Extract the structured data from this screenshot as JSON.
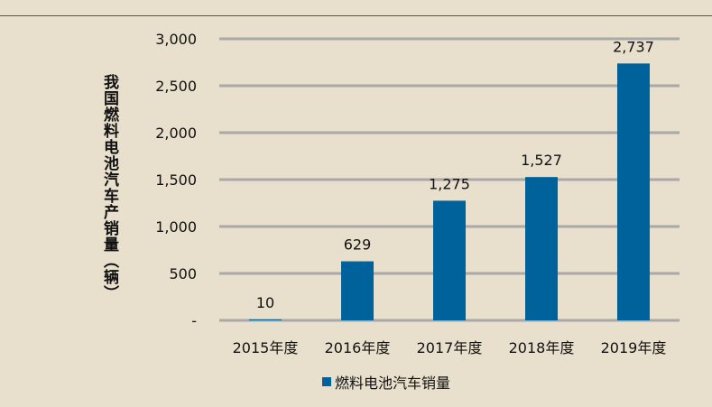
{
  "chart_data": {
    "type": "bar",
    "title": "",
    "xlabel": "",
    "ylabel": "我国燃料电池汽车产销量（辆）",
    "categories": [
      "2015年度",
      "2016年度",
      "2017年度",
      "2018年度",
      "2019年度"
    ],
    "series": [
      {
        "name": "燃料电池汽车销量",
        "values": [
          10,
          629,
          1275,
          1527,
          2737
        ],
        "color": "#00629b"
      }
    ],
    "data_labels": [
      "10",
      "629",
      "1,275",
      "1,527",
      "2,737"
    ],
    "ylim": [
      0,
      3000
    ],
    "yticks": [
      0,
      500,
      1000,
      1500,
      2000,
      2500,
      3000
    ],
    "ytick_labels": [
      "-",
      "500",
      "1,000",
      "1,500",
      "2,000",
      "2,500",
      "3,000"
    ],
    "grid": true,
    "gridline_color": "#a9a9a9",
    "background": "#e8e0cc",
    "legend_position": "bottom-center"
  }
}
